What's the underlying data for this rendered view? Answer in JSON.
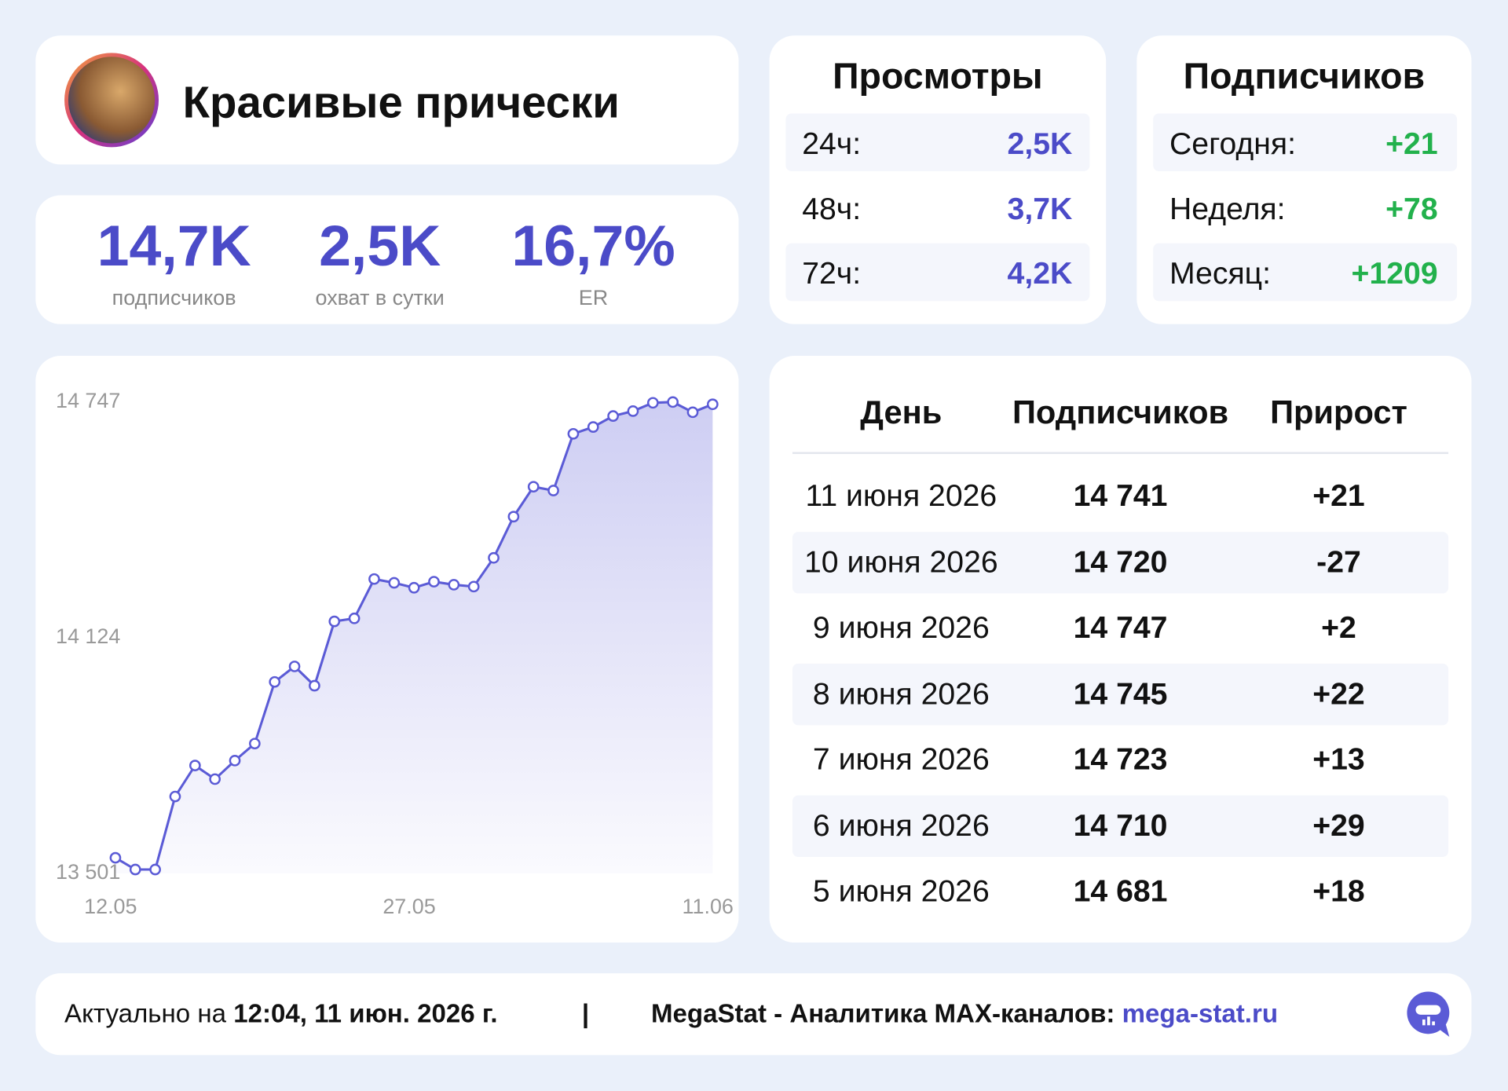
{
  "header": {
    "title": "Красивые прически"
  },
  "stats": [
    {
      "value": "14,7K",
      "label": "подписчиков"
    },
    {
      "value": "2,5K",
      "label": "охват в сутки"
    },
    {
      "value": "16,7%",
      "label": "ER"
    }
  ],
  "views": {
    "title": "Просмотры",
    "rows": [
      [
        "24ч:",
        "2,5K"
      ],
      [
        "48ч:",
        "3,7K"
      ],
      [
        "72ч:",
        "4,2K"
      ]
    ]
  },
  "subscribers": {
    "title": "Подписчиков",
    "rows": [
      [
        "Сегодня:",
        "+21"
      ],
      [
        "Неделя:",
        "+78"
      ],
      [
        "Месяц:",
        "+1209"
      ]
    ]
  },
  "chart_data": {
    "type": "line",
    "color": "#5b5bd6",
    "categories": [
      "12.05",
      null,
      null,
      null,
      null,
      null,
      null,
      null,
      null,
      null,
      null,
      null,
      null,
      null,
      null,
      "27.05",
      null,
      null,
      null,
      null,
      null,
      null,
      null,
      null,
      null,
      null,
      null,
      null,
      null,
      null,
      "11.06"
    ],
    "values": [
      13542,
      13511,
      13511,
      13704,
      13786,
      13750,
      13799,
      13844,
      14007,
      14048,
      13997,
      14167,
      14175,
      14279,
      14269,
      14256,
      14272,
      14264,
      14259,
      14335,
      14444,
      14523,
      14513,
      14663,
      14681,
      14710,
      14723,
      14745,
      14747,
      14720,
      14741
    ],
    "ylim": [
      13501,
      14747
    ],
    "yticks": [
      {
        "value": 13501,
        "label": "13 501"
      },
      {
        "value": 14124,
        "label": "14 124"
      },
      {
        "value": 14747,
        "label": "14 747"
      }
    ]
  },
  "table": {
    "columns": [
      "День",
      "Подписчиков",
      "Прирост"
    ],
    "rows": [
      [
        "11 июня 2026",
        "14 741",
        "+21"
      ],
      [
        "10 июня 2026",
        "14 720",
        "-27"
      ],
      [
        "9 июня 2026",
        "14 747",
        "+2"
      ],
      [
        "8 июня 2026",
        "14 745",
        "+22"
      ],
      [
        "7 июня 2026",
        "14 723",
        "+13"
      ],
      [
        "6 июня 2026",
        "14 710",
        "+29"
      ],
      [
        "5 июня 2026",
        "14 681",
        "+18"
      ]
    ]
  },
  "footer": {
    "prefix": "Актуально на",
    "timestamp": "12:04, 11 июн. 2026 г.",
    "separator": "|",
    "brand": "MegaStat - Аналитика MAX-каналов:",
    "link": "mega-stat.ru"
  }
}
